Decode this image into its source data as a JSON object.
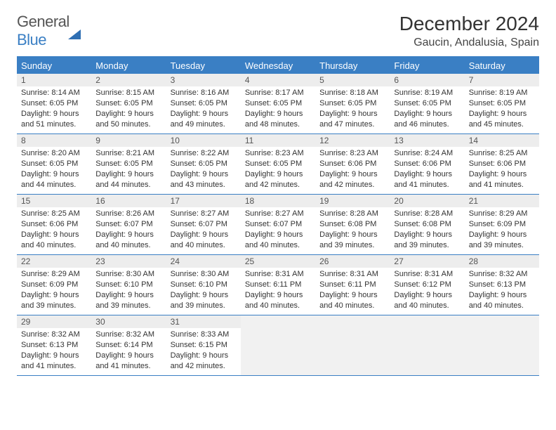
{
  "brand": {
    "word1": "General",
    "word2": "Blue"
  },
  "title": "December 2024",
  "location": "Gaucin, Andalusia, Spain",
  "colors": {
    "accent": "#3a7fc4",
    "header_bg": "#3a7fc4",
    "row_tint": "#ededed",
    "border": "#3a7fc4",
    "background": "#ffffff",
    "text": "#333333"
  },
  "fonts": {
    "title_size": 28,
    "location_size": 16,
    "dow_size": 13,
    "cell_size": 11
  },
  "days_of_week": [
    "Sunday",
    "Monday",
    "Tuesday",
    "Wednesday",
    "Thursday",
    "Friday",
    "Saturday"
  ],
  "weeks": [
    [
      {
        "n": "1",
        "sr": "Sunrise: 8:14 AM",
        "ss": "Sunset: 6:05 PM",
        "dl": "Daylight: 9 hours and 51 minutes."
      },
      {
        "n": "2",
        "sr": "Sunrise: 8:15 AM",
        "ss": "Sunset: 6:05 PM",
        "dl": "Daylight: 9 hours and 50 minutes."
      },
      {
        "n": "3",
        "sr": "Sunrise: 8:16 AM",
        "ss": "Sunset: 6:05 PM",
        "dl": "Daylight: 9 hours and 49 minutes."
      },
      {
        "n": "4",
        "sr": "Sunrise: 8:17 AM",
        "ss": "Sunset: 6:05 PM",
        "dl": "Daylight: 9 hours and 48 minutes."
      },
      {
        "n": "5",
        "sr": "Sunrise: 8:18 AM",
        "ss": "Sunset: 6:05 PM",
        "dl": "Daylight: 9 hours and 47 minutes."
      },
      {
        "n": "6",
        "sr": "Sunrise: 8:19 AM",
        "ss": "Sunset: 6:05 PM",
        "dl": "Daylight: 9 hours and 46 minutes."
      },
      {
        "n": "7",
        "sr": "Sunrise: 8:19 AM",
        "ss": "Sunset: 6:05 PM",
        "dl": "Daylight: 9 hours and 45 minutes."
      }
    ],
    [
      {
        "n": "8",
        "sr": "Sunrise: 8:20 AM",
        "ss": "Sunset: 6:05 PM",
        "dl": "Daylight: 9 hours and 44 minutes."
      },
      {
        "n": "9",
        "sr": "Sunrise: 8:21 AM",
        "ss": "Sunset: 6:05 PM",
        "dl": "Daylight: 9 hours and 44 minutes."
      },
      {
        "n": "10",
        "sr": "Sunrise: 8:22 AM",
        "ss": "Sunset: 6:05 PM",
        "dl": "Daylight: 9 hours and 43 minutes."
      },
      {
        "n": "11",
        "sr": "Sunrise: 8:23 AM",
        "ss": "Sunset: 6:05 PM",
        "dl": "Daylight: 9 hours and 42 minutes."
      },
      {
        "n": "12",
        "sr": "Sunrise: 8:23 AM",
        "ss": "Sunset: 6:06 PM",
        "dl": "Daylight: 9 hours and 42 minutes."
      },
      {
        "n": "13",
        "sr": "Sunrise: 8:24 AM",
        "ss": "Sunset: 6:06 PM",
        "dl": "Daylight: 9 hours and 41 minutes."
      },
      {
        "n": "14",
        "sr": "Sunrise: 8:25 AM",
        "ss": "Sunset: 6:06 PM",
        "dl": "Daylight: 9 hours and 41 minutes."
      }
    ],
    [
      {
        "n": "15",
        "sr": "Sunrise: 8:25 AM",
        "ss": "Sunset: 6:06 PM",
        "dl": "Daylight: 9 hours and 40 minutes."
      },
      {
        "n": "16",
        "sr": "Sunrise: 8:26 AM",
        "ss": "Sunset: 6:07 PM",
        "dl": "Daylight: 9 hours and 40 minutes."
      },
      {
        "n": "17",
        "sr": "Sunrise: 8:27 AM",
        "ss": "Sunset: 6:07 PM",
        "dl": "Daylight: 9 hours and 40 minutes."
      },
      {
        "n": "18",
        "sr": "Sunrise: 8:27 AM",
        "ss": "Sunset: 6:07 PM",
        "dl": "Daylight: 9 hours and 40 minutes."
      },
      {
        "n": "19",
        "sr": "Sunrise: 8:28 AM",
        "ss": "Sunset: 6:08 PM",
        "dl": "Daylight: 9 hours and 39 minutes."
      },
      {
        "n": "20",
        "sr": "Sunrise: 8:28 AM",
        "ss": "Sunset: 6:08 PM",
        "dl": "Daylight: 9 hours and 39 minutes."
      },
      {
        "n": "21",
        "sr": "Sunrise: 8:29 AM",
        "ss": "Sunset: 6:09 PM",
        "dl": "Daylight: 9 hours and 39 minutes."
      }
    ],
    [
      {
        "n": "22",
        "sr": "Sunrise: 8:29 AM",
        "ss": "Sunset: 6:09 PM",
        "dl": "Daylight: 9 hours and 39 minutes."
      },
      {
        "n": "23",
        "sr": "Sunrise: 8:30 AM",
        "ss": "Sunset: 6:10 PM",
        "dl": "Daylight: 9 hours and 39 minutes."
      },
      {
        "n": "24",
        "sr": "Sunrise: 8:30 AM",
        "ss": "Sunset: 6:10 PM",
        "dl": "Daylight: 9 hours and 39 minutes."
      },
      {
        "n": "25",
        "sr": "Sunrise: 8:31 AM",
        "ss": "Sunset: 6:11 PM",
        "dl": "Daylight: 9 hours and 40 minutes."
      },
      {
        "n": "26",
        "sr": "Sunrise: 8:31 AM",
        "ss": "Sunset: 6:11 PM",
        "dl": "Daylight: 9 hours and 40 minutes."
      },
      {
        "n": "27",
        "sr": "Sunrise: 8:31 AM",
        "ss": "Sunset: 6:12 PM",
        "dl": "Daylight: 9 hours and 40 minutes."
      },
      {
        "n": "28",
        "sr": "Sunrise: 8:32 AM",
        "ss": "Sunset: 6:13 PM",
        "dl": "Daylight: 9 hours and 40 minutes."
      }
    ],
    [
      {
        "n": "29",
        "sr": "Sunrise: 8:32 AM",
        "ss": "Sunset: 6:13 PM",
        "dl": "Daylight: 9 hours and 41 minutes."
      },
      {
        "n": "30",
        "sr": "Sunrise: 8:32 AM",
        "ss": "Sunset: 6:14 PM",
        "dl": "Daylight: 9 hours and 41 minutes."
      },
      {
        "n": "31",
        "sr": "Sunrise: 8:33 AM",
        "ss": "Sunset: 6:15 PM",
        "dl": "Daylight: 9 hours and 42 minutes."
      },
      null,
      null,
      null,
      null
    ]
  ]
}
